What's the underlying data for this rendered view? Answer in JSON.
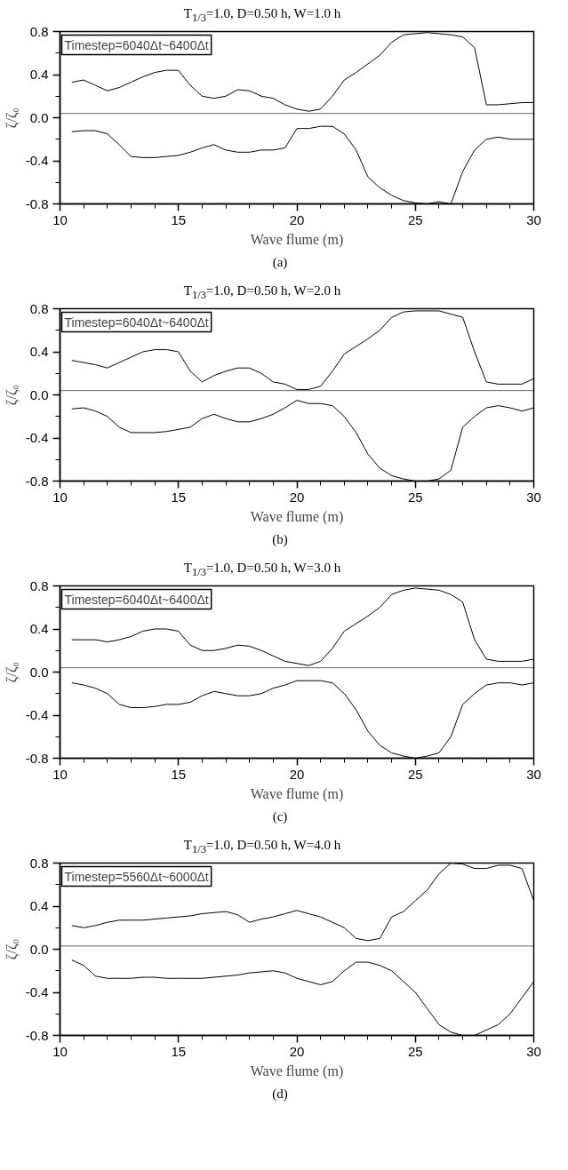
{
  "chart_data": [
    {
      "type": "line",
      "title": "T$_{1/3}$=1.0, D=0.50 h, W=1.0 h",
      "xlabel": "Wave flume (m)",
      "ylabel": "ζ/ζ₀",
      "annotations": [
        "Timestep=6040Δt~6400Δt",
        "(a)"
      ],
      "xlim": [
        10,
        30
      ],
      "ylim": [
        -0.8,
        0.8
      ],
      "xticks": [
        10,
        {
          "value": 11,
          "label": null
        },
        {
          "value": 12,
          "label": null
        },
        {
          "value": 13,
          "label": null
        },
        {
          "value": 14,
          "label": null
        },
        15,
        {
          "value": 16,
          "label": null
        },
        {
          "value": 17,
          "label": null
        },
        {
          "value": 18,
          "label": null
        },
        {
          "value": 19,
          "label": null
        },
        20,
        {
          "value": 21,
          "label": null
        },
        {
          "value": 22,
          "label": null
        },
        {
          "value": 23,
          "label": null
        },
        {
          "value": 24,
          "label": null
        },
        25,
        {
          "value": 26,
          "label": null
        },
        {
          "value": 27,
          "label": null
        },
        {
          "value": 28,
          "label": null
        },
        {
          "value": 29,
          "label": null
        },
        30
      ],
      "yticks": [
        {
          "value": -0.8,
          "label": "-0.8"
        },
        {
          "value": -0.6,
          "label": null
        },
        {
          "value": -0.4,
          "label": "-0.4"
        },
        {
          "value": -0.2,
          "label": null
        },
        {
          "value": 0,
          "label": "0.0"
        },
        {
          "value": 0.2,
          "label": null
        },
        {
          "value": 0.4,
          "label": "0.4"
        },
        {
          "value": 0.6,
          "label": null
        },
        {
          "value": 0.8,
          "label": "0.8"
        }
      ],
      "ref_lines": [
        {
          "axis": "y",
          "value": 0.04,
          "color": "#000000"
        }
      ],
      "series": [
        {
          "color": "#000000",
          "x": [
            10.5,
            11,
            11.5,
            12,
            12.5,
            13,
            13.5,
            14,
            14.5,
            15,
            15.5,
            16,
            16.5,
            17,
            17.5,
            18,
            18.5,
            19,
            19.5,
            20,
            20.5,
            21,
            21.5,
            22,
            22.5,
            23,
            23.5,
            24,
            24.5,
            25,
            25.5,
            26,
            26.5,
            27,
            27.5,
            28,
            28.5,
            29,
            29.5,
            30
          ],
          "values": [
            0.33,
            0.35,
            0.3,
            0.25,
            0.28,
            0.33,
            0.38,
            0.42,
            0.44,
            0.44,
            0.3,
            0.2,
            0.18,
            0.2,
            0.26,
            0.25,
            0.2,
            0.18,
            0.12,
            0.08,
            0.06,
            0.08,
            0.2,
            0.35,
            0.42,
            0.5,
            0.58,
            0.7,
            0.77,
            0.78,
            0.79,
            0.78,
            0.77,
            0.75,
            0.65,
            0.12,
            0.12,
            0.13,
            0.14,
            0.14
          ]
        },
        {
          "color": "#000000",
          "x": [
            10.5,
            11,
            11.5,
            12,
            12.5,
            13,
            13.5,
            14,
            14.5,
            15,
            15.5,
            16,
            16.5,
            17,
            17.5,
            18,
            18.5,
            19,
            19.5,
            20,
            20.5,
            21,
            21.5,
            22,
            22.5,
            23,
            23.5,
            24,
            24.5,
            25,
            25.5,
            26,
            26.5,
            27,
            27.5,
            28,
            28.5,
            29,
            29.5,
            30
          ],
          "values": [
            -0.13,
            -0.12,
            -0.12,
            -0.15,
            -0.25,
            -0.36,
            -0.37,
            -0.37,
            -0.36,
            -0.35,
            -0.32,
            -0.28,
            -0.25,
            -0.3,
            -0.32,
            -0.32,
            -0.3,
            -0.3,
            -0.28,
            -0.1,
            -0.1,
            -0.08,
            -0.08,
            -0.15,
            -0.3,
            -0.55,
            -0.65,
            -0.72,
            -0.77,
            -0.79,
            -0.8,
            -0.78,
            -0.8,
            -0.5,
            -0.3,
            -0.2,
            -0.18,
            -0.2,
            -0.2,
            -0.2
          ]
        }
      ]
    },
    {
      "type": "line",
      "title": "T$_{1/3}$=1.0, D=0.50 h, W=2.0 h",
      "xlabel": "Wave flume (m)",
      "ylabel": "ζ/ζ₀",
      "annotations": [
        "Timestep=6040Δt~6400Δt",
        "(b)"
      ],
      "xlim": [
        10,
        30
      ],
      "ylim": [
        -0.8,
        0.8
      ],
      "xticks": [
        10,
        {
          "value": 11,
          "label": null
        },
        {
          "value": 12,
          "label": null
        },
        {
          "value": 13,
          "label": null
        },
        {
          "value": 14,
          "label": null
        },
        15,
        {
          "value": 16,
          "label": null
        },
        {
          "value": 17,
          "label": null
        },
        {
          "value": 18,
          "label": null
        },
        {
          "value": 19,
          "label": null
        },
        20,
        {
          "value": 21,
          "label": null
        },
        {
          "value": 22,
          "label": null
        },
        {
          "value": 23,
          "label": null
        },
        {
          "value": 24,
          "label": null
        },
        25,
        {
          "value": 26,
          "label": null
        },
        {
          "value": 27,
          "label": null
        },
        {
          "value": 28,
          "label": null
        },
        {
          "value": 29,
          "label": null
        },
        30
      ],
      "yticks": [
        {
          "value": -0.8,
          "label": "-0.8"
        },
        {
          "value": -0.6,
          "label": null
        },
        {
          "value": -0.4,
          "label": "-0.4"
        },
        {
          "value": -0.2,
          "label": null
        },
        {
          "value": 0,
          "label": "0.0"
        },
        {
          "value": 0.2,
          "label": null
        },
        {
          "value": 0.4,
          "label": "0.4"
        },
        {
          "value": 0.6,
          "label": null
        },
        {
          "value": 0.8,
          "label": "0.8"
        }
      ],
      "ref_lines": [
        {
          "axis": "y",
          "value": 0.04,
          "color": "#000000"
        }
      ],
      "series": [
        {
          "color": "#000000",
          "x": [
            10.5,
            11,
            11.5,
            12,
            12.5,
            13,
            13.5,
            14,
            14.5,
            15,
            15.5,
            16,
            16.5,
            17,
            17.5,
            18,
            18.5,
            19,
            19.5,
            20,
            20.5,
            21,
            21.5,
            22,
            22.5,
            23,
            23.5,
            24,
            24.5,
            25,
            25.5,
            26,
            26.5,
            27,
            27.5,
            28,
            28.5,
            29,
            29.5,
            30
          ],
          "values": [
            0.32,
            0.3,
            0.28,
            0.25,
            0.3,
            0.35,
            0.4,
            0.42,
            0.42,
            0.4,
            0.22,
            0.12,
            0.18,
            0.22,
            0.25,
            0.25,
            0.2,
            0.12,
            0.1,
            0.05,
            0.05,
            0.08,
            0.22,
            0.38,
            0.45,
            0.52,
            0.6,
            0.72,
            0.77,
            0.78,
            0.78,
            0.78,
            0.75,
            0.72,
            0.4,
            0.12,
            0.1,
            0.1,
            0.1,
            0.15
          ]
        },
        {
          "color": "#000000",
          "x": [
            10.5,
            11,
            11.5,
            12,
            12.5,
            13,
            13.5,
            14,
            14.5,
            15,
            15.5,
            16,
            16.5,
            17,
            17.5,
            18,
            18.5,
            19,
            19.5,
            20,
            20.5,
            21,
            21.5,
            22,
            22.5,
            23,
            23.5,
            24,
            24.5,
            25,
            25.5,
            26,
            26.5,
            27,
            27.5,
            28,
            28.5,
            29,
            29.5,
            30
          ],
          "values": [
            -0.13,
            -0.12,
            -0.15,
            -0.2,
            -0.3,
            -0.35,
            -0.35,
            -0.35,
            -0.34,
            -0.32,
            -0.3,
            -0.22,
            -0.18,
            -0.22,
            -0.25,
            -0.25,
            -0.22,
            -0.18,
            -0.12,
            -0.05,
            -0.08,
            -0.08,
            -0.1,
            -0.2,
            -0.35,
            -0.55,
            -0.68,
            -0.75,
            -0.78,
            -0.8,
            -0.8,
            -0.78,
            -0.7,
            -0.3,
            -0.2,
            -0.12,
            -0.1,
            -0.12,
            -0.15,
            -0.12
          ]
        }
      ]
    },
    {
      "type": "line",
      "title": "T$_{1/3}$=1.0, D=0.50 h, W=3.0 h",
      "xlabel": "Wave flume (m)",
      "ylabel": "ζ/ζ₀",
      "annotations": [
        "Timestep=6040Δt~6400Δt",
        "(c)"
      ],
      "xlim": [
        10,
        30
      ],
      "ylim": [
        -0.8,
        0.8
      ],
      "xticks": [
        10,
        {
          "value": 11,
          "label": null
        },
        {
          "value": 12,
          "label": null
        },
        {
          "value": 13,
          "label": null
        },
        {
          "value": 14,
          "label": null
        },
        15,
        {
          "value": 16,
          "label": null
        },
        {
          "value": 17,
          "label": null
        },
        {
          "value": 18,
          "label": null
        },
        {
          "value": 19,
          "label": null
        },
        20,
        {
          "value": 21,
          "label": null
        },
        {
          "value": 22,
          "label": null
        },
        {
          "value": 23,
          "label": null
        },
        {
          "value": 24,
          "label": null
        },
        25,
        {
          "value": 26,
          "label": null
        },
        {
          "value": 27,
          "label": null
        },
        {
          "value": 28,
          "label": null
        },
        {
          "value": 29,
          "label": null
        },
        30
      ],
      "yticks": [
        {
          "value": -0.8,
          "label": "-0.8"
        },
        {
          "value": -0.6,
          "label": null
        },
        {
          "value": -0.4,
          "label": "-0.4"
        },
        {
          "value": -0.2,
          "label": null
        },
        {
          "value": 0,
          "label": "0.0"
        },
        {
          "value": 0.2,
          "label": null
        },
        {
          "value": 0.4,
          "label": "0.4"
        },
        {
          "value": 0.6,
          "label": null
        },
        {
          "value": 0.8,
          "label": "0.8"
        }
      ],
      "ref_lines": [
        {
          "axis": "y",
          "value": 0.04,
          "color": "#000000"
        }
      ],
      "series": [
        {
          "color": "#000000",
          "x": [
            10.5,
            11,
            11.5,
            12,
            12.5,
            13,
            13.5,
            14,
            14.5,
            15,
            15.5,
            16,
            16.5,
            17,
            17.5,
            18,
            18.5,
            19,
            19.5,
            20,
            20.5,
            21,
            21.5,
            22,
            22.5,
            23,
            23.5,
            24,
            24.5,
            25,
            25.5,
            26,
            26.5,
            27,
            27.5,
            28,
            28.5,
            29,
            29.5,
            30
          ],
          "values": [
            0.3,
            0.3,
            0.3,
            0.28,
            0.3,
            0.33,
            0.38,
            0.4,
            0.4,
            0.38,
            0.25,
            0.2,
            0.2,
            0.22,
            0.25,
            0.24,
            0.2,
            0.15,
            0.1,
            0.08,
            0.06,
            0.1,
            0.22,
            0.38,
            0.45,
            0.52,
            0.6,
            0.72,
            0.76,
            0.78,
            0.77,
            0.76,
            0.72,
            0.65,
            0.3,
            0.12,
            0.1,
            0.1,
            0.1,
            0.12
          ]
        },
        {
          "color": "#000000",
          "x": [
            10.5,
            11,
            11.5,
            12,
            12.5,
            13,
            13.5,
            14,
            14.5,
            15,
            15.5,
            16,
            16.5,
            17,
            17.5,
            18,
            18.5,
            19,
            19.5,
            20,
            20.5,
            21,
            21.5,
            22,
            22.5,
            23,
            23.5,
            24,
            24.5,
            25,
            25.5,
            26,
            26.5,
            27,
            27.5,
            28,
            28.5,
            29,
            29.5,
            30
          ],
          "values": [
            -0.1,
            -0.12,
            -0.15,
            -0.2,
            -0.3,
            -0.33,
            -0.33,
            -0.32,
            -0.3,
            -0.3,
            -0.28,
            -0.22,
            -0.18,
            -0.2,
            -0.22,
            -0.22,
            -0.2,
            -0.15,
            -0.12,
            -0.08,
            -0.08,
            -0.08,
            -0.1,
            -0.2,
            -0.35,
            -0.55,
            -0.68,
            -0.75,
            -0.78,
            -0.8,
            -0.78,
            -0.75,
            -0.6,
            -0.3,
            -0.2,
            -0.12,
            -0.1,
            -0.1,
            -0.12,
            -0.1
          ]
        }
      ]
    },
    {
      "type": "line",
      "title": "T$_{1/3}$=1.0, D=0.50 h, W=4.0 h",
      "xlabel": "Wave flume (m)",
      "ylabel": "ζ/ζ₀",
      "annotations": [
        "Timestep=5560Δt~6000Δt",
        "(d)"
      ],
      "xlim": [
        10,
        30
      ],
      "ylim": [
        -0.8,
        0.8
      ],
      "xticks": [
        10,
        {
          "value": 11,
          "label": null
        },
        {
          "value": 12,
          "label": null
        },
        {
          "value": 13,
          "label": null
        },
        {
          "value": 14,
          "label": null
        },
        15,
        {
          "value": 16,
          "label": null
        },
        {
          "value": 17,
          "label": null
        },
        {
          "value": 18,
          "label": null
        },
        {
          "value": 19,
          "label": null
        },
        20,
        {
          "value": 21,
          "label": null
        },
        {
          "value": 22,
          "label": null
        },
        {
          "value": 23,
          "label": null
        },
        {
          "value": 24,
          "label": null
        },
        25,
        {
          "value": 26,
          "label": null
        },
        {
          "value": 27,
          "label": null
        },
        {
          "value": 28,
          "label": null
        },
        {
          "value": 29,
          "label": null
        },
        30
      ],
      "yticks": [
        {
          "value": -0.8,
          "label": "-0.8"
        },
        {
          "value": -0.6,
          "label": null
        },
        {
          "value": -0.4,
          "label": "-0.4"
        },
        {
          "value": -0.2,
          "label": null
        },
        {
          "value": 0,
          "label": "0.0"
        },
        {
          "value": 0.2,
          "label": null
        },
        {
          "value": 0.4,
          "label": "0.4"
        },
        {
          "value": 0.6,
          "label": null
        },
        {
          "value": 0.8,
          "label": "0.8"
        }
      ],
      "ref_lines": [
        {
          "axis": "y",
          "value": 0.03,
          "color": "#000000"
        }
      ],
      "series": [
        {
          "color": "#000000",
          "x": [
            10.5,
            11,
            11.5,
            12,
            12.5,
            13,
            13.5,
            14,
            14.5,
            15,
            15.5,
            16,
            16.5,
            17,
            17.5,
            18,
            18.5,
            19,
            19.5,
            20,
            20.5,
            21,
            21.5,
            22,
            22.5,
            23,
            23.5,
            24,
            24.5,
            25,
            25.5,
            26,
            26.5,
            27,
            27.5,
            28,
            28.5,
            29,
            29.5,
            30
          ],
          "values": [
            0.22,
            0.2,
            0.22,
            0.25,
            0.27,
            0.27,
            0.27,
            0.28,
            0.29,
            0.3,
            0.31,
            0.33,
            0.34,
            0.35,
            0.32,
            0.25,
            0.28,
            0.3,
            0.33,
            0.36,
            0.33,
            0.3,
            0.25,
            0.2,
            0.1,
            0.08,
            0.1,
            0.3,
            0.35,
            0.45,
            0.55,
            0.7,
            0.8,
            0.79,
            0.75,
            0.75,
            0.78,
            0.78,
            0.75,
            0.45
          ]
        },
        {
          "color": "#000000",
          "x": [
            10.5,
            11,
            11.5,
            12,
            12.5,
            13,
            13.5,
            14,
            14.5,
            15,
            15.5,
            16,
            16.5,
            17,
            17.5,
            18,
            18.5,
            19,
            19.5,
            20,
            20.5,
            21,
            21.5,
            22,
            22.5,
            23,
            23.5,
            24,
            24.5,
            25,
            25.5,
            26,
            26.5,
            27,
            27.5,
            28,
            28.5,
            29,
            29.5,
            30
          ],
          "values": [
            -0.1,
            -0.15,
            -0.25,
            -0.27,
            -0.27,
            -0.27,
            -0.26,
            -0.26,
            -0.27,
            -0.27,
            -0.27,
            -0.27,
            -0.26,
            -0.25,
            -0.24,
            -0.22,
            -0.21,
            -0.2,
            -0.22,
            -0.27,
            -0.3,
            -0.33,
            -0.3,
            -0.2,
            -0.12,
            -0.12,
            -0.15,
            -0.2,
            -0.3,
            -0.4,
            -0.55,
            -0.7,
            -0.77,
            -0.8,
            -0.8,
            -0.75,
            -0.7,
            -0.6,
            -0.45,
            -0.3
          ]
        }
      ]
    }
  ]
}
